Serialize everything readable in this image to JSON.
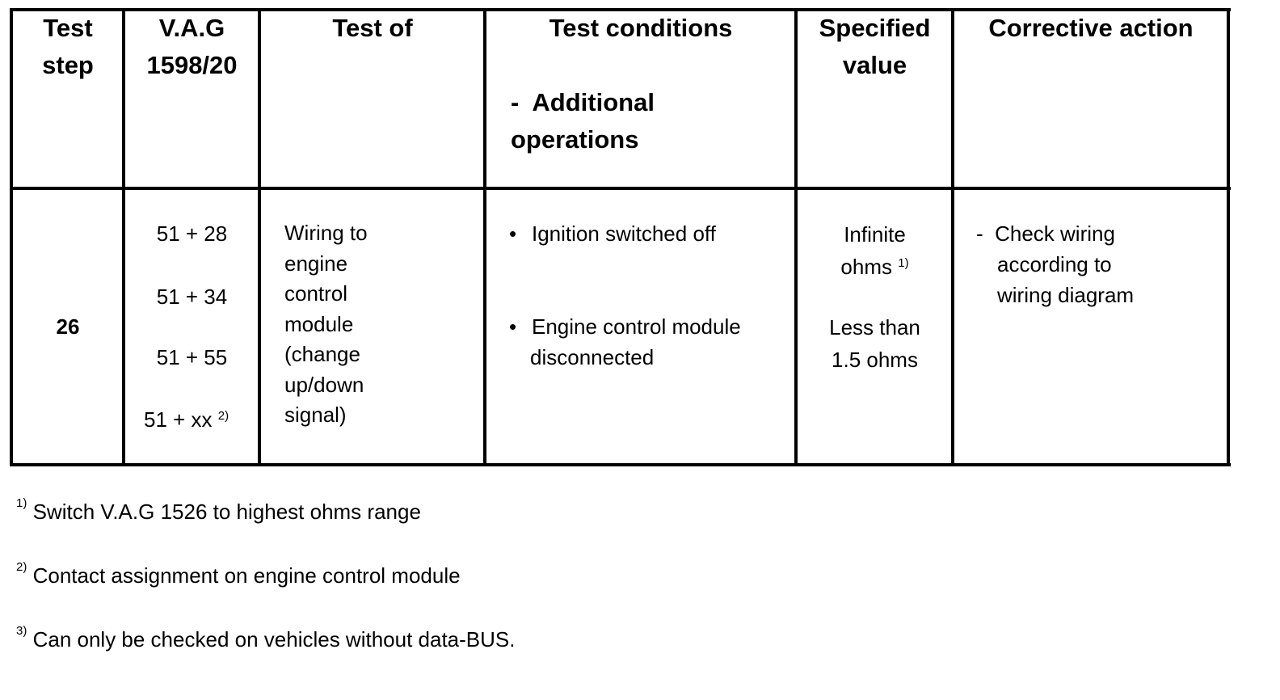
{
  "table": {
    "headers": {
      "test_step": [
        "Test",
        "step"
      ],
      "vag": [
        "V.A.G",
        "1598/20"
      ],
      "test_of": "Test of",
      "test_conditions": "Test conditions",
      "additional_operations": [
        "-  Additional",
        "operations"
      ],
      "specified_value": [
        "Specified",
        "value"
      ],
      "corrective_action": "Corrective action"
    },
    "row": {
      "test_step": "26",
      "vag_pins": [
        "51 + 28",
        "51 + 34",
        "51 + 55",
        "51 + xx"
      ],
      "vag_last_footnote": "2)",
      "test_of": [
        "Wiring to",
        "engine",
        "control",
        "module",
        "(change",
        "up/down",
        "signal)"
      ],
      "conditions": [
        "Ignition switched off",
        "Engine control module",
        "disconnected"
      ],
      "bullet": "•",
      "specified": [
        "Infinite",
        "ohms",
        "Less than",
        "1.5 ohms"
      ],
      "specified_footnote": "1)",
      "corrective": [
        "-  Check wiring",
        "according to",
        "wiring diagram"
      ]
    }
  },
  "footnotes": [
    {
      "mark": "1)",
      "text": "Switch V.A.G 1526 to highest ohms range"
    },
    {
      "mark": "2)",
      "text": "Contact assignment on engine control module"
    },
    {
      "mark": "3)",
      "text": "Can only be checked on vehicles without data-BUS."
    }
  ]
}
